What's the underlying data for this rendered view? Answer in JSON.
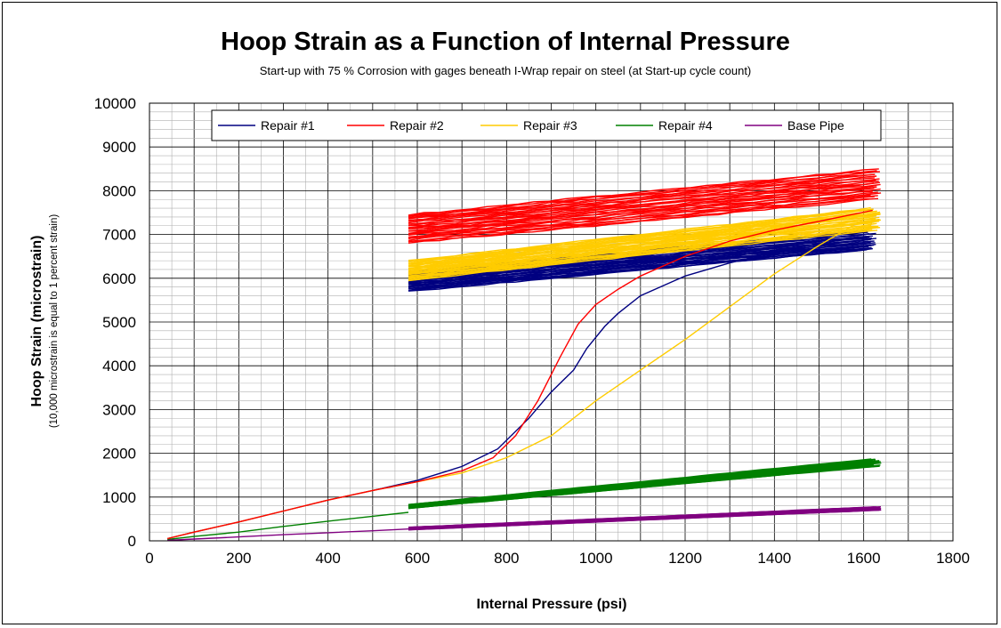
{
  "chart_data": {
    "type": "line",
    "title": "Hoop Strain as a Function of Internal Pressure",
    "subtitle": "Start-up with 75 % Corrosion with gages beneath I-Wrap repair on steel (at Start-up cycle count)",
    "xlabel": "Internal Pressure (psi)",
    "ylabel": "Hoop Strain (microstrain)",
    "ylabel_sub": "(10,000 microstrain is equal to 1 percent strain)",
    "xlim": [
      0,
      1800
    ],
    "ylim": [
      0,
      10000
    ],
    "x_ticks": [
      "0",
      "200",
      "400",
      "600",
      "800",
      "1000",
      "1200",
      "1400",
      "1600",
      "1800"
    ],
    "y_ticks": [
      "0",
      "1000",
      "2000",
      "3000",
      "4000",
      "5000",
      "6000",
      "7000",
      "8000",
      "9000",
      "10000"
    ],
    "grid": true,
    "legend_position": "top",
    "series": [
      {
        "name": "Repair #1",
        "color": "#000080",
        "loading_curve": [
          [
            40,
            50
          ],
          [
            100,
            200
          ],
          [
            200,
            430
          ],
          [
            300,
            680
          ],
          [
            400,
            930
          ],
          [
            500,
            1150
          ],
          [
            600,
            1380
          ],
          [
            700,
            1700
          ],
          [
            780,
            2100
          ],
          [
            850,
            2800
          ],
          [
            900,
            3400
          ],
          [
            950,
            3900
          ],
          [
            980,
            4400
          ],
          [
            1020,
            4900
          ],
          [
            1050,
            5200
          ],
          [
            1100,
            5600
          ],
          [
            1200,
            6050
          ],
          [
            1300,
            6350
          ],
          [
            1400,
            6600
          ],
          [
            1500,
            6800
          ],
          [
            1600,
            6950
          ]
        ],
        "cycle_band": {
          "x_start": 580,
          "x_end": 1630,
          "y_start_low": 5700,
          "y_start_high": 6150,
          "y_end_low": 6650,
          "y_end_high": 7100
        }
      },
      {
        "name": "Repair #2",
        "color": "#FF0000",
        "loading_curve": [
          [
            40,
            50
          ],
          [
            100,
            200
          ],
          [
            200,
            430
          ],
          [
            300,
            680
          ],
          [
            400,
            930
          ],
          [
            500,
            1150
          ],
          [
            600,
            1350
          ],
          [
            700,
            1600
          ],
          [
            770,
            1900
          ],
          [
            820,
            2400
          ],
          [
            870,
            3200
          ],
          [
            920,
            4200
          ],
          [
            960,
            4950
          ],
          [
            1000,
            5400
          ],
          [
            1050,
            5750
          ],
          [
            1100,
            6050
          ],
          [
            1200,
            6500
          ],
          [
            1300,
            6850
          ],
          [
            1400,
            7100
          ],
          [
            1500,
            7300
          ],
          [
            1620,
            7550
          ]
        ],
        "cycle_band": {
          "x_start": 580,
          "x_end": 1640,
          "y_start_low": 6800,
          "y_start_high": 7450,
          "y_end_low": 7800,
          "y_end_high": 8500
        }
      },
      {
        "name": "Repair #3",
        "color": "#FFCC00",
        "loading_curve": [
          [
            40,
            50
          ],
          [
            100,
            200
          ],
          [
            200,
            430
          ],
          [
            300,
            680
          ],
          [
            400,
            930
          ],
          [
            500,
            1150
          ],
          [
            600,
            1350
          ],
          [
            700,
            1550
          ],
          [
            800,
            1900
          ],
          [
            900,
            2400
          ],
          [
            1000,
            3200
          ],
          [
            1100,
            3900
          ],
          [
            1200,
            4600
          ],
          [
            1300,
            5350
          ],
          [
            1400,
            6100
          ],
          [
            1500,
            6750
          ],
          [
            1600,
            7350
          ]
        ],
        "cycle_band": {
          "x_start": 580,
          "x_end": 1640,
          "y_start_low": 5950,
          "y_start_high": 6400,
          "y_end_low": 7100,
          "y_end_high": 7600
        }
      },
      {
        "name": "Repair #4",
        "color": "#008000",
        "loading_curve": [
          [
            40,
            30
          ],
          [
            100,
            100
          ],
          [
            200,
            200
          ],
          [
            300,
            330
          ],
          [
            400,
            450
          ],
          [
            500,
            560
          ],
          [
            580,
            650
          ]
        ],
        "cycle_band": {
          "x_start": 580,
          "x_end": 1640,
          "y_start_low": 740,
          "y_start_high": 830,
          "y_end_low": 1700,
          "y_end_high": 1870
        }
      },
      {
        "name": "Base Pipe",
        "color": "#800080",
        "loading_curve": [
          [
            40,
            10
          ],
          [
            100,
            40
          ],
          [
            200,
            90
          ],
          [
            300,
            140
          ],
          [
            400,
            185
          ],
          [
            500,
            230
          ],
          [
            580,
            270
          ]
        ],
        "cycle_band": {
          "x_start": 580,
          "x_end": 1640,
          "y_start_low": 250,
          "y_start_high": 310,
          "y_end_low": 700,
          "y_end_high": 780
        }
      }
    ]
  }
}
